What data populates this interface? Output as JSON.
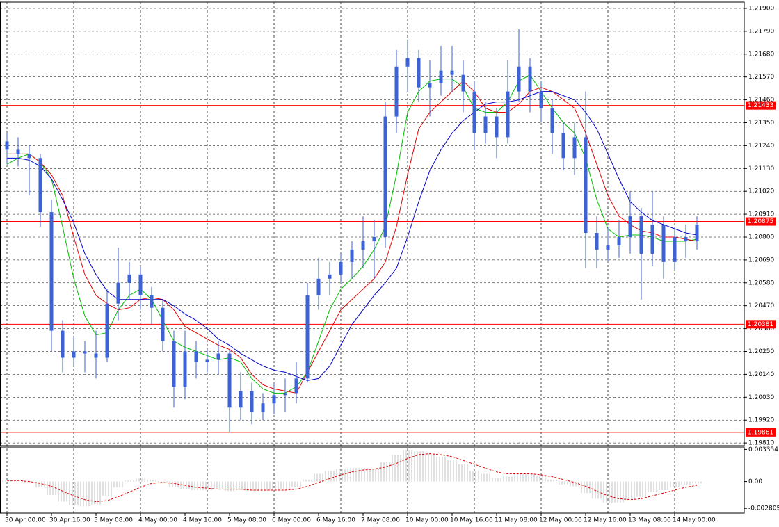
{
  "chart_data": [
    {
      "type": "candlestick",
      "categories": [
        "30 Apr 00:00",
        null,
        null,
        null,
        "30 Apr 16:00",
        null,
        null,
        null,
        "3 May 08:00",
        null,
        null,
        null,
        "4 May 00:00",
        null,
        null,
        null,
        "4 May 16:00",
        null,
        null,
        null,
        "5 May 08:00",
        null,
        null,
        null,
        "6 May 00:00",
        null,
        null,
        null,
        "6 May 16:00",
        null,
        null,
        null,
        "7 May 08:00",
        null,
        null,
        null,
        "10 May 00:00",
        null,
        null,
        null,
        "10 May 16:00",
        null,
        null,
        null,
        "11 May 08:00",
        null,
        null,
        null,
        "12 May 00:00",
        null,
        null,
        null,
        "12 May 16:00",
        null,
        null,
        null,
        "13 May 08:00",
        null,
        null,
        null,
        "14 May 00:00",
        null,
        null
      ],
      "open": [
        1.2126,
        1.2122,
        1.212,
        1.2118,
        1.2092,
        1.2035,
        1.2022,
        1.2025,
        1.2024,
        1.2022,
        1.2048,
        1.2058,
        1.2062,
        1.2052,
        1.2046,
        1.203,
        1.2008,
        1.2025,
        1.202,
        1.2021,
        1.2024,
        1.1998,
        1.2006,
        1.1996,
        1.2,
        1.2004,
        1.2005,
        1.2012,
        1.2052,
        1.206,
        1.2062,
        1.2068,
        1.2074,
        1.2078,
        1.208,
        1.2138,
        1.2162,
        1.2166,
        1.2152,
        1.2154,
        1.216,
        1.2158,
        1.215,
        1.213,
        1.2138,
        1.2128,
        1.215,
        1.2162,
        1.215,
        1.2142,
        1.213,
        1.2118,
        1.2128,
        1.2082,
        1.2074,
        1.2076,
        1.208,
        1.209,
        1.2072,
        1.2086,
        1.2068,
        1.208,
        1.2078
      ],
      "high": [
        1.213,
        1.2128,
        1.2124,
        1.212,
        1.2098,
        1.204,
        1.2032,
        1.203,
        1.2035,
        1.2055,
        1.2075,
        1.2068,
        1.2066,
        1.2056,
        1.205,
        1.2035,
        1.2035,
        1.203,
        1.2026,
        1.203,
        1.2026,
        1.2015,
        1.201,
        1.2005,
        1.201,
        1.2012,
        1.202,
        1.2058,
        1.207,
        1.2068,
        1.2072,
        1.2078,
        1.209,
        1.2088,
        1.2145,
        1.217,
        1.2175,
        1.217,
        1.2165,
        1.2172,
        1.2172,
        1.2165,
        1.2155,
        1.2145,
        1.2142,
        1.2165,
        1.218,
        1.2166,
        1.2155,
        1.2146,
        1.2135,
        1.2135,
        1.215,
        1.209,
        1.2085,
        1.2088,
        1.2102,
        1.2094,
        1.2102,
        1.209,
        1.2085,
        1.2086,
        1.209
      ],
      "low": [
        1.2115,
        1.2114,
        1.21,
        1.2085,
        1.2025,
        1.2015,
        1.2018,
        1.2015,
        1.2012,
        1.202,
        1.204,
        1.205,
        1.2045,
        1.2038,
        1.2025,
        1.1998,
        1.2002,
        1.2012,
        1.2015,
        1.2014,
        1.1986,
        1.1992,
        1.199,
        1.1992,
        1.1995,
        1.1996,
        1.2,
        1.201,
        1.2045,
        1.2052,
        1.2058,
        1.206,
        1.2065,
        1.206,
        1.2075,
        1.213,
        1.215,
        1.2145,
        1.2138,
        1.2148,
        1.215,
        1.214,
        1.2122,
        1.2125,
        1.2118,
        1.2125,
        1.2145,
        1.214,
        1.2135,
        1.212,
        1.2112,
        1.211,
        1.2065,
        1.2065,
        1.2068,
        1.207,
        1.2072,
        1.205,
        1.2066,
        1.206,
        1.2064,
        1.207,
        1.2074
      ],
      "close": [
        1.2122,
        1.212,
        1.2118,
        1.2092,
        1.2035,
        1.2022,
        1.2025,
        1.2024,
        1.2022,
        1.2048,
        1.2058,
        1.2062,
        1.2052,
        1.2046,
        1.203,
        1.2008,
        1.2025,
        1.202,
        1.2021,
        1.2024,
        1.1998,
        1.2006,
        1.1996,
        1.2,
        1.2004,
        1.2005,
        1.2012,
        1.2052,
        1.206,
        1.2062,
        1.2068,
        1.2074,
        1.2078,
        1.208,
        1.2138,
        1.2162,
        1.2166,
        1.2152,
        1.2154,
        1.216,
        1.2158,
        1.215,
        1.213,
        1.2138,
        1.2128,
        1.215,
        1.2162,
        1.215,
        1.2142,
        1.213,
        1.2118,
        1.2128,
        1.2082,
        1.2074,
        1.2076,
        1.208,
        1.209,
        1.2072,
        1.2086,
        1.2068,
        1.208,
        1.2078,
        1.2086
      ],
      "color": "#3b62d6",
      "series": [
        {
          "color": "#00c000",
          "values": [
            1.2115,
            1.2118,
            1.212,
            1.2116,
            1.2108,
            1.2085,
            1.206,
            1.2042,
            1.2033,
            1.2034,
            1.2045,
            1.2052,
            1.2055,
            1.205,
            1.204,
            1.203,
            1.2027,
            1.2025,
            1.2023,
            1.2021,
            1.2022,
            1.202,
            1.2012,
            1.2007,
            1.2005,
            1.2005,
            1.2008,
            1.2015,
            1.203,
            1.2045,
            1.2055,
            1.206,
            1.2066,
            1.2074,
            1.2085,
            1.211,
            1.214,
            1.215,
            1.2155,
            1.2156,
            1.2156,
            1.2152,
            1.2142,
            1.214,
            1.214,
            1.2145,
            1.2155,
            1.2158,
            1.215,
            1.2142,
            1.2135,
            1.213,
            1.2118,
            1.2098,
            1.2084,
            1.208,
            1.2081,
            1.2081,
            1.208,
            1.2078,
            1.2078,
            1.2078,
            1.2079
          ]
        },
        {
          "color": "#e00000",
          "values": [
            1.212,
            1.212,
            1.212,
            1.2116,
            1.211,
            1.21,
            1.208,
            1.2062,
            1.2052,
            1.2048,
            1.2045,
            1.2046,
            1.205,
            1.2051,
            1.205,
            1.2045,
            1.2037,
            1.2034,
            1.2031,
            1.2028,
            1.2026,
            1.2022,
            1.2014,
            1.2009,
            1.2007,
            1.2006,
            1.2005,
            1.2015,
            1.2025,
            1.2035,
            1.2045,
            1.205,
            1.2055,
            1.206,
            1.2068,
            1.2085,
            1.211,
            1.2132,
            1.214,
            1.2145,
            1.215,
            1.2155,
            1.215,
            1.2142,
            1.214,
            1.214,
            1.2144,
            1.215,
            1.2152,
            1.215,
            1.2146,
            1.2142,
            1.213,
            1.2115,
            1.21,
            1.209,
            1.2086,
            1.2083,
            1.2082,
            1.208,
            1.208,
            1.2079,
            1.2078
          ]
        },
        {
          "color": "#0000c8",
          "values": [
            1.2118,
            1.2118,
            1.2117,
            1.2114,
            1.2108,
            1.2098,
            1.2087,
            1.2072,
            1.2062,
            1.2054,
            1.205,
            1.205,
            1.205,
            1.205,
            1.205,
            1.2047,
            1.2043,
            1.204,
            1.2036,
            1.2031,
            1.2028,
            1.2024,
            1.2021,
            1.2018,
            1.2016,
            1.2015,
            1.2013,
            1.2011,
            1.2012,
            1.2018,
            1.2028,
            1.2038,
            1.2045,
            1.2052,
            1.2058,
            1.2065,
            1.208,
            1.2097,
            1.2112,
            1.2122,
            1.213,
            1.2136,
            1.214,
            1.2144,
            1.2145,
            1.2145,
            1.2146,
            1.2148,
            1.215,
            1.215,
            1.2148,
            1.2146,
            1.214,
            1.2132,
            1.212,
            1.2108,
            1.2097,
            1.2092,
            1.2088,
            1.2086,
            1.2084,
            1.2082,
            1.2081
          ]
        }
      ],
      "levels": [
        1.21433,
        1.20875,
        1.20381,
        1.19861
      ],
      "level_color": "#ff0000",
      "ylim": [
        1.19797,
        1.2193
      ],
      "yticks": [
        {
          "value": 1.219,
          "label": "1.21900"
        },
        {
          "value": 1.2179,
          "label": "1.21790"
        },
        {
          "value": 1.2168,
          "label": "1.21680"
        },
        {
          "value": 1.2157,
          "label": "1.21570"
        },
        {
          "value": 1.2146,
          "label": "1.21460"
        },
        {
          "value": 1.2135,
          "label": "1.21350"
        },
        {
          "value": 1.2124,
          "label": "1.21240"
        },
        {
          "value": 1.2113,
          "label": "1.21130"
        },
        {
          "value": 1.2102,
          "label": "1.21020"
        },
        {
          "value": 1.2091,
          "label": "1.20910"
        },
        {
          "value": 1.208,
          "label": "1.20800"
        },
        {
          "value": 1.2069,
          "label": "1.20690"
        },
        {
          "value": 1.2058,
          "label": "1.20580"
        },
        {
          "value": 1.2047,
          "label": "1.20470"
        },
        {
          "value": 1.2036,
          "label": "1.20360"
        },
        {
          "value": 1.2025,
          "label": "1.20250"
        },
        {
          "value": 1.2014,
          "label": "1.20140"
        },
        {
          "value": 1.2003,
          "label": "1.20030"
        },
        {
          "value": 1.1992,
          "label": "1.19920"
        },
        {
          "value": 1.1981,
          "label": "1.19810"
        }
      ],
      "grid": true
    },
    {
      "type": "macd",
      "values": [
        0.0001,
        0.0,
        -0.0001,
        -0.0006,
        -0.0014,
        -0.0021,
        -0.0025,
        -0.0026,
        -0.0024,
        -0.0015,
        -0.0006,
        0.0001,
        0.0003,
        0.0002,
        -0.0001,
        -0.0006,
        -0.0008,
        -0.0009,
        -0.0009,
        -0.0008,
        -0.001,
        -0.0009,
        -0.001,
        -0.001,
        -0.0009,
        -0.0008,
        -0.0006,
        0.0002,
        0.0008,
        0.0011,
        0.0013,
        0.0014,
        0.0014,
        0.0013,
        0.002,
        0.0028,
        0.0033,
        0.0032,
        0.0029,
        0.0026,
        0.0022,
        0.0018,
        0.0011,
        0.0008,
        0.0004,
        0.0005,
        0.0008,
        0.0008,
        0.0006,
        0.0002,
        -0.0003,
        -0.0005,
        -0.0012,
        -0.0018,
        -0.0022,
        -0.0022,
        -0.0019,
        -0.0016,
        -0.0011,
        -0.0009,
        -0.0006,
        -0.0004,
        -0.0002
      ],
      "color": "#c0c0c0",
      "signal": {
        "color": "#e00000",
        "values": [
          0.0001,
          0.0001,
          0.0,
          -0.0002,
          -0.0005,
          -0.001,
          -0.0015,
          -0.0019,
          -0.0021,
          -0.002,
          -0.0016,
          -0.0011,
          -0.0006,
          -0.0002,
          -0.0001,
          -0.0002,
          -0.0004,
          -0.0006,
          -0.0007,
          -0.0008,
          -0.0008,
          -0.0008,
          -0.0009,
          -0.0009,
          -0.0009,
          -0.0009,
          -0.0008,
          -0.0005,
          -0.0001,
          0.0003,
          0.0007,
          0.001,
          0.0012,
          0.0013,
          0.0015,
          0.0019,
          0.0024,
          0.0028,
          0.0029,
          0.0028,
          0.0026,
          0.0022,
          0.0018,
          0.0014,
          0.001,
          0.0008,
          0.0008,
          0.0008,
          0.0007,
          0.0005,
          0.0002,
          -0.0001,
          -0.0005,
          -0.001,
          -0.0015,
          -0.0018,
          -0.0019,
          -0.0018,
          -0.0015,
          -0.0012,
          -0.0009,
          -0.0006,
          -0.0004
        ]
      },
      "ylim": [
        -0.0033,
        0.0036
      ],
      "yticks": [
        0.003354,
        {
          "value": 0,
          "label": "0.00"
        },
        -0.002805
      ]
    }
  ]
}
